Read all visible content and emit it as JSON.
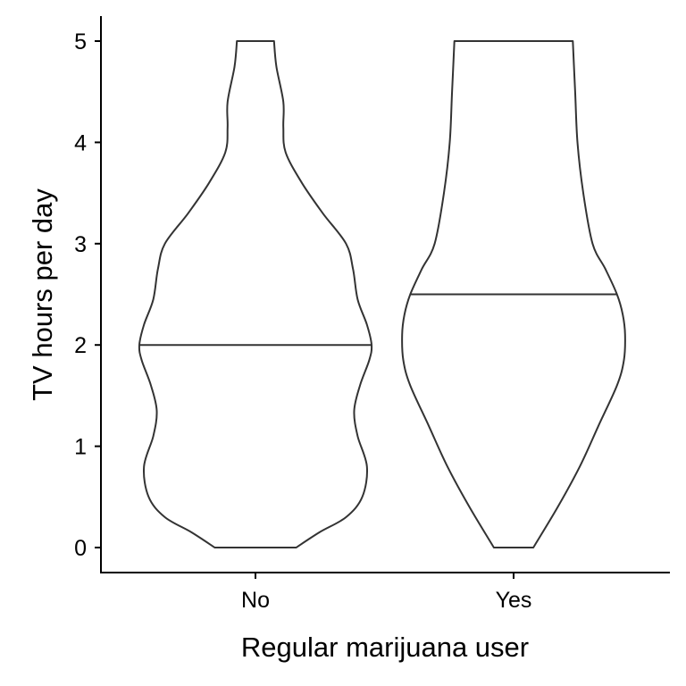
{
  "chart_data": {
    "type": "violin",
    "title": "",
    "xlabel": "Regular marijuana user",
    "ylabel": "TV hours per day",
    "categories": [
      "No",
      "Yes"
    ],
    "ylim": [
      -0.25,
      5.25
    ],
    "yticks": [
      0,
      1,
      2,
      3,
      4,
      5
    ],
    "grid": false,
    "legend": "none",
    "colors": {
      "outline": "#333333",
      "axis": "#000000",
      "background": "#ffffff"
    },
    "series": [
      {
        "category": "No",
        "median": 2.0,
        "density_profile": [
          [
            0.0,
            0.35
          ],
          [
            0.15,
            0.55
          ],
          [
            0.3,
            0.78
          ],
          [
            0.5,
            0.92
          ],
          [
            0.8,
            0.96
          ],
          [
            1.1,
            0.88
          ],
          [
            1.35,
            0.85
          ],
          [
            1.6,
            0.9
          ],
          [
            1.85,
            0.98
          ],
          [
            2.0,
            1.0
          ],
          [
            2.2,
            0.96
          ],
          [
            2.45,
            0.88
          ],
          [
            2.75,
            0.84
          ],
          [
            3.0,
            0.78
          ],
          [
            3.3,
            0.58
          ],
          [
            3.6,
            0.4
          ],
          [
            3.9,
            0.26
          ],
          [
            4.15,
            0.24
          ],
          [
            4.4,
            0.24
          ],
          [
            4.75,
            0.18
          ],
          [
            5.0,
            0.16
          ]
        ]
      },
      {
        "category": "Yes",
        "median": 2.5,
        "density_profile": [
          [
            0.0,
            0.17
          ],
          [
            0.4,
            0.38
          ],
          [
            0.8,
            0.57
          ],
          [
            1.2,
            0.73
          ],
          [
            1.6,
            0.89
          ],
          [
            1.85,
            0.95
          ],
          [
            2.1,
            0.96
          ],
          [
            2.3,
            0.94
          ],
          [
            2.5,
            0.89
          ],
          [
            2.75,
            0.79
          ],
          [
            3.0,
            0.68
          ],
          [
            3.5,
            0.6
          ],
          [
            4.0,
            0.55
          ],
          [
            4.5,
            0.53
          ],
          [
            5.0,
            0.51
          ]
        ]
      }
    ]
  }
}
